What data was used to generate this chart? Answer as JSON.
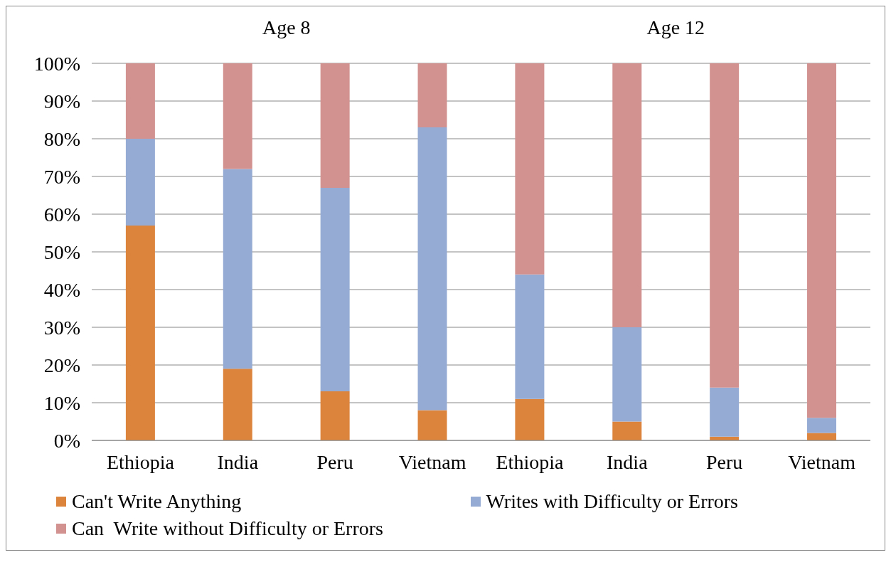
{
  "chart_data": {
    "type": "bar",
    "stacked": true,
    "annotations": [
      "Age 8",
      "Age 12"
    ],
    "categories": [
      "Ethiopia",
      "India",
      "Peru",
      "Vietnam",
      "Ethiopia",
      "India",
      "Peru",
      "Vietnam"
    ],
    "series": [
      {
        "name": "Can't Write Anything",
        "color": "#dd843c",
        "values": [
          57,
          19,
          13,
          8,
          11,
          5,
          1,
          2
        ]
      },
      {
        "name": "Writes with Difficulty or Errors",
        "color": "#95abd3",
        "values": [
          23,
          53,
          54,
          75,
          33,
          25,
          13,
          4
        ]
      },
      {
        "name": "Can  Write without Difficulty or Errors",
        "color": "#d29290",
        "values": [
          20,
          28,
          33,
          17,
          56,
          70,
          86,
          94
        ]
      }
    ],
    "ylim": [
      0,
      100
    ],
    "yticks": [
      {
        "value": 0,
        "label": "0%"
      },
      {
        "value": 10,
        "label": "10%"
      },
      {
        "value": 20,
        "label": "20%"
      },
      {
        "value": 30,
        "label": "30%"
      },
      {
        "value": 40,
        "label": "40%"
      },
      {
        "value": 50,
        "label": "50%"
      },
      {
        "value": 60,
        "label": "60%"
      },
      {
        "value": 70,
        "label": "70%"
      },
      {
        "value": 80,
        "label": "80%"
      },
      {
        "value": 90,
        "label": "90%"
      },
      {
        "value": 100,
        "label": "100%"
      }
    ],
    "grid": "y",
    "legend": "bottom"
  }
}
